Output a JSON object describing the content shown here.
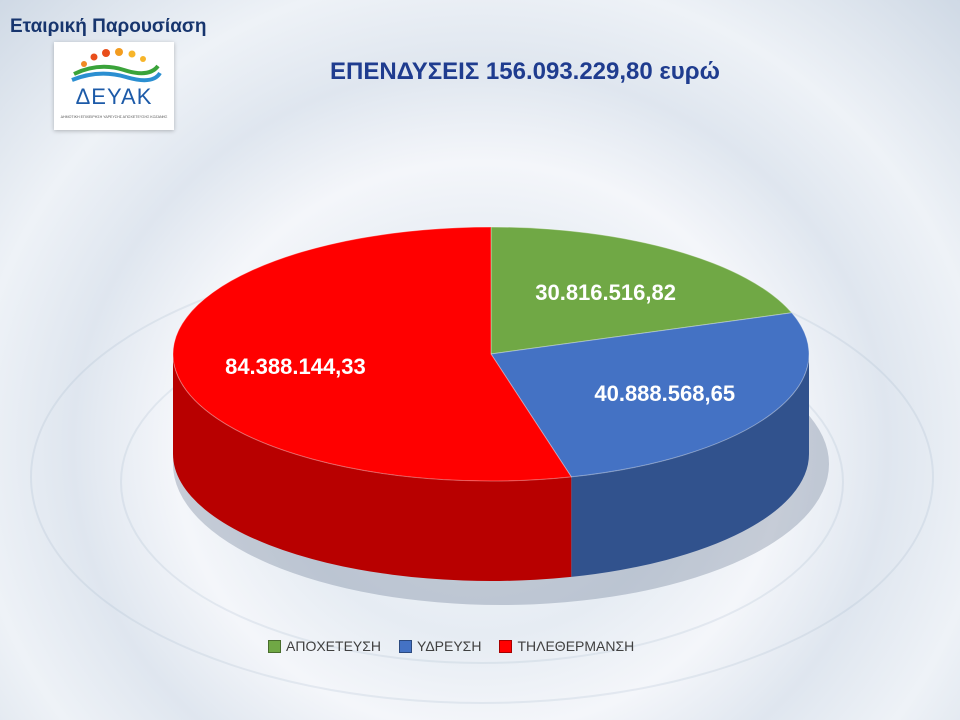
{
  "header": {
    "title": "Εταιρική Παρουσίαση"
  },
  "logo": {
    "text": "ΔΕΥΑΚ",
    "subtitle": "ΔΗΜΟΤΙΚΗ ΕΠΙΧΕΙΡΗΣΗ ΥΔΡΕΥΣΗΣ ΑΠΟΧΕΤΕΥΣΗΣ ΚΟΖΑΝΗΣ"
  },
  "chart_data": {
    "type": "pie",
    "title": "ΕΠΕΝΔΥΣΕΙΣ 156.093.229,80 ευρώ",
    "categories": [
      "ΑΠΟΧΕΤΕΥΣΗ",
      "ΥΔΡΕΥΣΗ",
      "ΤΗΛΕΘΕΡΜΑΝΣΗ"
    ],
    "values": [
      30816516.82,
      40888568.65,
      84388144.33
    ],
    "data_labels": [
      "30.816.516,82",
      "40.888.568,65",
      "84.388.144,33"
    ],
    "colors": [
      "#70a845",
      "#4472c4",
      "#ff0000"
    ],
    "legend": "bottom",
    "style": "3d"
  }
}
